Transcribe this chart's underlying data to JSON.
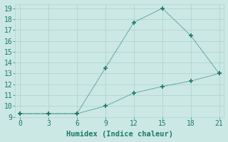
{
  "line1_x": [
    0,
    3,
    6,
    9,
    12,
    15,
    18,
    21
  ],
  "line1_y": [
    9.3,
    9.3,
    9.3,
    13.5,
    17.7,
    19.0,
    16.5,
    13.0
  ],
  "line2_x": [
    0,
    3,
    6,
    9,
    12,
    15,
    18,
    21
  ],
  "line2_y": [
    9.3,
    9.3,
    9.3,
    10.0,
    11.2,
    11.8,
    12.3,
    13.0
  ],
  "line_color": "#1a7a6a",
  "bg_color": "#cce8e4",
  "grid_color": "#b0d4cf",
  "xlabel": "Humidex (Indice chaleur)",
  "xlim": [
    -0.5,
    21.5
  ],
  "ylim": [
    9,
    19.4
  ],
  "xticks": [
    0,
    3,
    6,
    9,
    12,
    15,
    18,
    21
  ],
  "yticks": [
    9,
    10,
    11,
    12,
    13,
    14,
    15,
    16,
    17,
    18,
    19
  ],
  "xlabel_fontsize": 7.5,
  "tick_fontsize": 7
}
